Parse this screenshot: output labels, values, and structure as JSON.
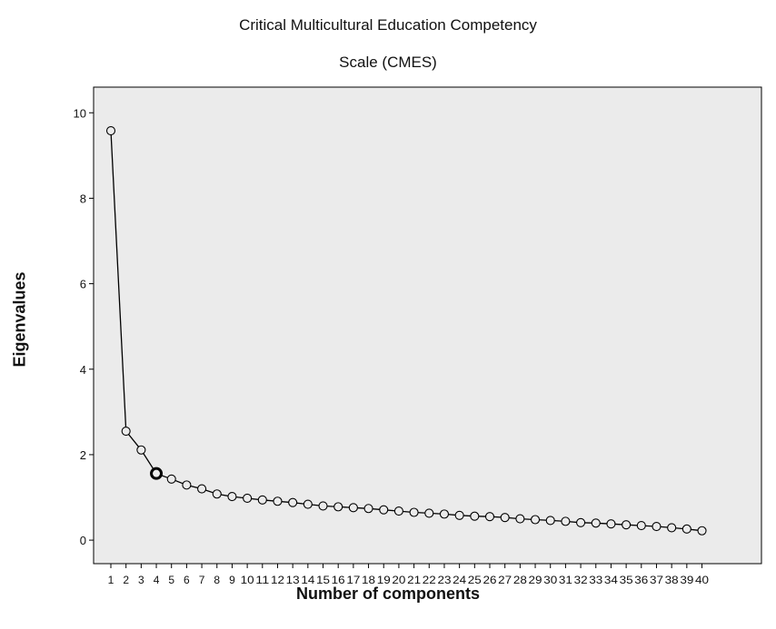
{
  "chart_data": {
    "type": "line",
    "title_line1": "Critical Multicultural Education Competency",
    "title_line2": "Scale (CMES)",
    "xlabel": "Number of components",
    "ylabel": "Eigenvalues",
    "ylim": [
      -0.55,
      10.6
    ],
    "yticks": [
      0,
      2,
      4,
      6,
      8,
      10
    ],
    "grid": false,
    "highlighted_point": 4,
    "colors": {
      "plot_background": "#ebebeb",
      "line": "#000000",
      "marker_edge": "#000000"
    },
    "x": [
      1,
      2,
      3,
      4,
      5,
      6,
      7,
      8,
      9,
      10,
      11,
      12,
      13,
      14,
      15,
      16,
      17,
      18,
      19,
      20,
      21,
      22,
      23,
      24,
      25,
      26,
      27,
      28,
      29,
      30,
      31,
      32,
      33,
      34,
      35,
      36,
      37,
      38,
      39,
      40
    ],
    "values": [
      9.58,
      2.55,
      2.11,
      1.56,
      1.43,
      1.29,
      1.2,
      1.08,
      1.02,
      0.98,
      0.94,
      0.91,
      0.88,
      0.84,
      0.8,
      0.78,
      0.76,
      0.74,
      0.71,
      0.68,
      0.65,
      0.63,
      0.61,
      0.58,
      0.56,
      0.55,
      0.53,
      0.5,
      0.48,
      0.46,
      0.44,
      0.41,
      0.4,
      0.38,
      0.36,
      0.34,
      0.32,
      0.29,
      0.26,
      0.22
    ]
  }
}
